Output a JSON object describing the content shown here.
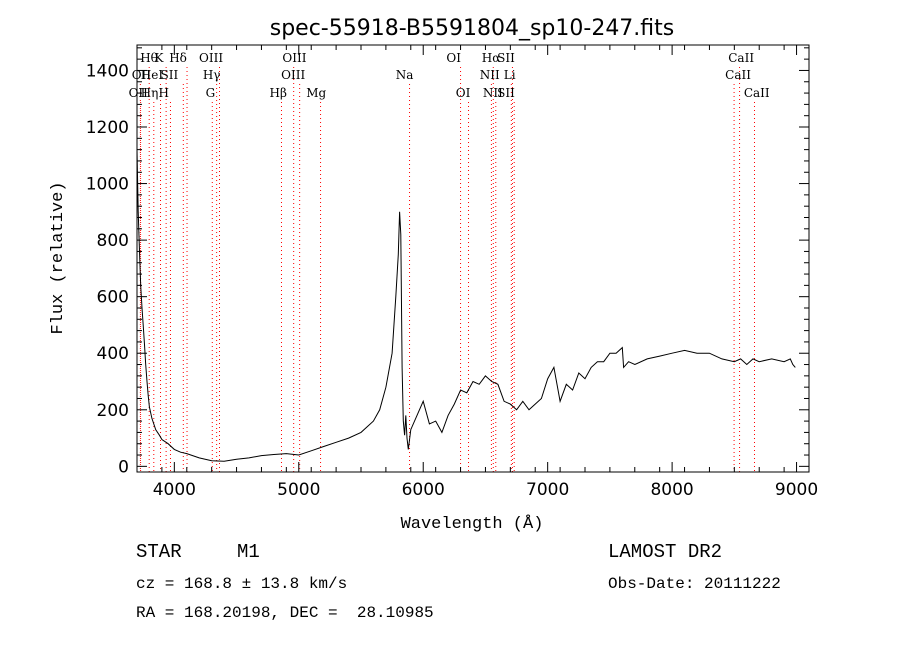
{
  "title": "spec-55918-B5591804_sp10-247.fits",
  "chart_data": {
    "type": "line",
    "title": "spec-55918-B5591804_sp10-247.fits",
    "xlabel": "Wavelength (Å)",
    "ylabel": "Flux (relative)",
    "xlim": [
      3700,
      9100
    ],
    "ylim": [
      -20,
      1490
    ],
    "x_ticks": [
      4000,
      5000,
      6000,
      7000,
      8000,
      9000
    ],
    "y_ticks": [
      0,
      200,
      400,
      600,
      800,
      1000,
      1200,
      1400
    ],
    "grid": false,
    "line_color": "#000000",
    "marker_color": "#ff0000",
    "series": [
      {
        "x": [
          3700,
          3710,
          3720,
          3730,
          3740,
          3750,
          3760,
          3770,
          3780,
          3790,
          3800,
          3820,
          3850,
          3880,
          3900,
          3950,
          4000,
          4050,
          4100,
          4200,
          4300,
          4400,
          4500,
          4600,
          4700,
          4800,
          4900,
          5000,
          5100,
          5200,
          5300,
          5400,
          5500,
          5600,
          5650,
          5700,
          5750,
          5780,
          5800,
          5810,
          5820,
          5830,
          5840,
          5850,
          5860,
          5870,
          5880,
          5900,
          5950,
          6000,
          6050,
          6100,
          6150,
          6200,
          6250,
          6300,
          6350,
          6400,
          6450,
          6500,
          6550,
          6600,
          6650,
          6700,
          6750,
          6800,
          6850,
          6900,
          6950,
          7000,
          7050,
          7100,
          7150,
          7200,
          7250,
          7300,
          7350,
          7400,
          7450,
          7500,
          7550,
          7600,
          7610,
          7650,
          7700,
          7800,
          7900,
          8000,
          8100,
          8200,
          8300,
          8400,
          8500,
          8550,
          8600,
          8650,
          8700,
          8800,
          8900,
          8950,
          8970,
          8990
        ],
        "y": [
          1120,
          900,
          760,
          640,
          560,
          500,
          430,
          360,
          300,
          250,
          210,
          170,
          130,
          110,
          95,
          80,
          60,
          50,
          45,
          30,
          20,
          18,
          25,
          30,
          38,
          42,
          45,
          40,
          55,
          70,
          85,
          100,
          120,
          160,
          200,
          280,
          400,
          600,
          750,
          900,
          820,
          350,
          160,
          110,
          180,
          100,
          60,
          130,
          180,
          230,
          150,
          160,
          120,
          180,
          220,
          270,
          260,
          300,
          290,
          320,
          300,
          290,
          230,
          220,
          200,
          230,
          200,
          220,
          240,
          310,
          350,
          230,
          290,
          270,
          330,
          310,
          350,
          370,
          370,
          400,
          400,
          420,
          350,
          370,
          360,
          380,
          390,
          400,
          410,
          400,
          400,
          380,
          370,
          380,
          360,
          380,
          370,
          380,
          370,
          380,
          360,
          350
        ]
      }
    ],
    "line_markers": [
      {
        "label": "Hθ",
        "x": 3798,
        "row": 1,
        "label_x": 3797
      },
      {
        "label": "K",
        "x": 3934,
        "row": 1,
        "label_x": 3877
      },
      {
        "label": "Hδ",
        "x": 4102,
        "row": 1,
        "label_x": 4030
      },
      {
        "label": "OIII",
        "x": 4363,
        "row": 1,
        "label_x": 4295
      },
      {
        "label": "OIII",
        "x": 4959,
        "row": 1,
        "label_x": 4965
      },
      {
        "label": "OI",
        "x": 6300,
        "row": 1,
        "label_x": 6245
      },
      {
        "label": "Hα",
        "x": 6563,
        "row": 1,
        "label_x": 6545
      },
      {
        "label": "SII",
        "x": 6717,
        "row": 1,
        "label_x": 6665
      },
      {
        "label": "CaII",
        "x": 8542,
        "row": 1,
        "label_x": 8555
      },
      {
        "label": "OII",
        "x": 3727,
        "row": 2,
        "label_x": 3735
      },
      {
        "label": "HeI",
        "x": 3889,
        "row": 2,
        "label_x": 3820
      },
      {
        "label": "SII",
        "x": 4072,
        "row": 2,
        "label_x": 3960
      },
      {
        "label": "Hγ",
        "x": 4340,
        "row": 2,
        "label_x": 4300
      },
      {
        "label": "OIII",
        "x": 5007,
        "row": 2,
        "label_x": 4955
      },
      {
        "label": "Na",
        "x": 5890,
        "row": 2,
        "label_x": 5850
      },
      {
        "label": "NII",
        "x": 6548,
        "row": 2,
        "label_x": 6535
      },
      {
        "label": "Li",
        "x": 6708,
        "row": 2,
        "label_x": 6695
      },
      {
        "label": "CaII",
        "x": 8498,
        "row": 2,
        "label_x": 8530
      },
      {
        "label": "OII",
        "x": 3729,
        "row": 3,
        "label_x": 3710
      },
      {
        "label": "Hη",
        "x": 3835,
        "row": 3,
        "label_x": 3800
      },
      {
        "label": "H",
        "x": 3969,
        "row": 3,
        "label_x": 3915
      },
      {
        "label": "G",
        "x": 4305,
        "row": 3,
        "label_x": 4290
      },
      {
        "label": "Hβ",
        "x": 4861,
        "row": 3,
        "label_x": 4835
      },
      {
        "label": "Mg",
        "x": 5175,
        "row": 3,
        "label_x": 5140
      },
      {
        "label": "OI",
        "x": 6364,
        "row": 3,
        "label_x": 6320
      },
      {
        "label": "NII",
        "x": 6583,
        "row": 3,
        "label_x": 6560
      },
      {
        "label": "SII",
        "x": 6731,
        "row": 3,
        "label_x": 6665
      },
      {
        "label": "CaII",
        "x": 8662,
        "row": 3,
        "label_x": 8680
      }
    ]
  },
  "info": {
    "object_class": "STAR",
    "subclass": "M1",
    "survey": "LAMOST DR2",
    "cz": "cz = 168.8 ± 13.8 km/s",
    "obs_date": "Obs-Date: 20111222",
    "coords": "RA = 168.20198, DEC =  28.10985"
  }
}
